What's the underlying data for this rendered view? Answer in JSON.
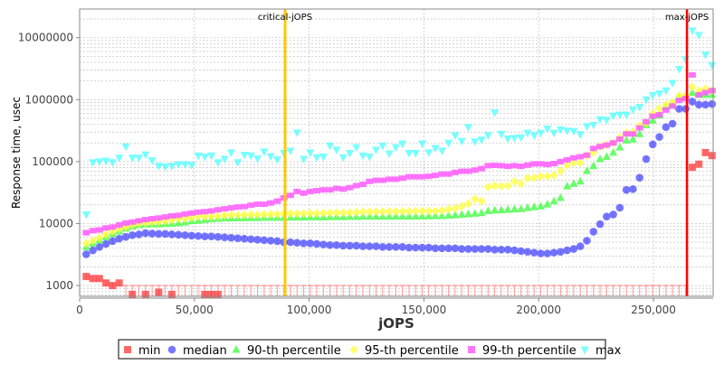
{
  "chart_data": {
    "type": "scatter",
    "title": "",
    "xlabel": "jOPS",
    "ylabel": "Response time, usec",
    "xlim": [
      0,
      276000
    ],
    "ylim": [
      670,
      29000000
    ],
    "yscale": "log",
    "grid": true,
    "legend_placement": "bottom",
    "x_ticks": [
      0,
      50000,
      100000,
      150000,
      200000,
      250000
    ],
    "x_tick_labels": [
      "0",
      "50,000",
      "100,000",
      "150,000",
      "200,000",
      "250,000"
    ],
    "y_ticks": [
      1000,
      10000,
      100000,
      1000000,
      10000000
    ],
    "y_tick_labels": [
      "1000",
      "10000",
      "100000",
      "1000000",
      "10000000"
    ],
    "x_step": 2870,
    "annotations": [
      {
        "label": "critical-jOPS",
        "x": 89500,
        "color": "#ffc800"
      },
      {
        "label": "max-jOPS",
        "x": 264600,
        "color": "#ff0000"
      }
    ],
    "series": [
      {
        "name": "min",
        "marker": "square",
        "color": "#ff4444",
        "values": [
          1400,
          1300,
          1300,
          1100,
          1000,
          1100,
          null,
          720,
          null,
          720,
          null,
          780,
          null,
          720,
          null,
          null,
          null,
          null,
          720,
          720,
          720,
          null,
          null,
          null,
          null,
          null,
          null,
          null,
          null,
          null,
          null,
          null,
          null,
          null,
          null,
          null,
          null,
          null,
          null,
          null,
          null,
          null,
          null,
          null,
          null,
          null,
          null,
          null,
          null,
          null,
          null,
          null,
          null,
          null,
          null,
          null,
          null,
          null,
          null,
          null,
          null,
          null,
          null,
          null,
          null,
          null,
          null,
          null,
          null,
          null,
          null,
          null,
          null,
          null,
          null,
          null,
          null,
          null,
          null,
          null,
          null,
          null,
          null,
          null,
          null,
          null,
          null,
          null,
          null,
          null,
          null,
          null,
          81000,
          91000,
          140000,
          125000
        ]
      },
      {
        "name": "median",
        "marker": "circle",
        "color": "#5555ff",
        "values": [
          3200,
          3700,
          4200,
          4700,
          5200,
          5700,
          6100,
          6500,
          6700,
          7000,
          6900,
          6800,
          6800,
          6700,
          6600,
          6500,
          6400,
          6300,
          6200,
          6200,
          6100,
          6000,
          5900,
          5800,
          5700,
          5600,
          5500,
          5400,
          5300,
          5200,
          5000,
          5000,
          4900,
          4800,
          4800,
          4700,
          4600,
          4500,
          4500,
          4400,
          4400,
          4400,
          4300,
          4300,
          4300,
          4200,
          4200,
          4200,
          4200,
          4100,
          4100,
          4100,
          4100,
          4000,
          4000,
          4000,
          4000,
          3900,
          3900,
          3900,
          3900,
          3900,
          3800,
          3800,
          3800,
          3700,
          3600,
          3500,
          3400,
          3300,
          3300,
          3400,
          3500,
          3700,
          3900,
          4300,
          5300,
          7400,
          9800,
          13000,
          14000,
          18000,
          35000,
          36000,
          55000,
          110000,
          190000,
          250000,
          360000,
          410000,
          710000,
          710000,
          930000,
          830000,
          830000,
          850000
        ]
      },
      {
        "name": "90-th percentile",
        "marker": "triangle-up",
        "color": "#44ff44",
        "values": [
          4200,
          4800,
          5400,
          6100,
          6800,
          7500,
          8300,
          9000,
          9500,
          9700,
          9800,
          9800,
          9900,
          10000,
          10200,
          10500,
          11000,
          11200,
          11500,
          11800,
          12000,
          12200,
          12200,
          12300,
          12300,
          12400,
          12400,
          12500,
          12500,
          12500,
          12500,
          12600,
          12600,
          12600,
          12700,
          12700,
          12700,
          12800,
          12800,
          12800,
          12900,
          12900,
          13000,
          13000,
          13000,
          13000,
          13000,
          13100,
          13100,
          13100,
          13100,
          13200,
          13200,
          13300,
          13300,
          13500,
          13700,
          14000,
          14300,
          14500,
          14800,
          16000,
          16300,
          16500,
          16800,
          17000,
          17200,
          18000,
          18500,
          19000,
          20500,
          23000,
          26000,
          40000,
          44000,
          48000,
          71000,
          85000,
          110000,
          120000,
          140000,
          170000,
          220000,
          230000,
          280000,
          390000,
          460000,
          560000,
          770000,
          830000,
          1100000,
          1120000,
          1300000,
          1200000,
          1200000,
          1200000
        ]
      },
      {
        "name": "95-th percentile",
        "marker": "diamond",
        "color": "#ffff44",
        "values": [
          4800,
          5300,
          5900,
          6700,
          7500,
          8200,
          8800,
          9500,
          10000,
          10300,
          10500,
          10700,
          11000,
          11500,
          12000,
          12000,
          12500,
          13000,
          13000,
          13000,
          13200,
          13500,
          13800,
          13800,
          13900,
          14000,
          14000,
          14100,
          14200,
          14200,
          14500,
          14500,
          14600,
          14600,
          14700,
          14700,
          14800,
          14900,
          15000,
          15000,
          15100,
          15200,
          15500,
          15500,
          15600,
          15600,
          15700,
          15700,
          15800,
          15800,
          15900,
          15900,
          16000,
          16000,
          16200,
          17000,
          17500,
          19000,
          21000,
          25000,
          23000,
          39000,
          41000,
          40000,
          41000,
          48000,
          44000,
          54000,
          55000,
          58000,
          58000,
          60000,
          71000,
          87000,
          96000,
          96000,
          125000,
          140000,
          175000,
          185000,
          200000,
          245000,
          290000,
          300000,
          380000,
          420000,
          600000,
          720000,
          830000,
          910000,
          1160000,
          1160000,
          1600000,
          1400000,
          1500000,
          1400000
        ]
      },
      {
        "name": "99-th percentile",
        "marker": "square-small",
        "color": "#ff55ff",
        "values": [
          7100,
          7700,
          7900,
          8500,
          8800,
          9500,
          10200,
          10600,
          11100,
          11600,
          12000,
          12300,
          12800,
          13300,
          13600,
          14300,
          14800,
          15300,
          15600,
          16000,
          16700,
          17300,
          17900,
          18500,
          18800,
          19800,
          20600,
          20500,
          21500,
          23000,
          26000,
          28500,
          33000,
          31000,
          33000,
          34000,
          35000,
          35000,
          37000,
          36000,
          38000,
          41000,
          43000,
          48000,
          50000,
          50000,
          52000,
          52000,
          54000,
          57000,
          57000,
          57000,
          58000,
          60000,
          63000,
          63000,
          67000,
          70000,
          70000,
          73000,
          77000,
          86000,
          87000,
          86000,
          84000,
          86000,
          84000,
          88000,
          92000,
          92000,
          90000,
          93000,
          100000,
          107000,
          115000,
          120000,
          127000,
          163000,
          175000,
          185000,
          200000,
          230000,
          280000,
          280000,
          350000,
          440000,
          540000,
          570000,
          680000,
          790000,
          970000,
          1040000,
          2500000,
          1200000,
          1300000,
          1400000
        ]
      },
      {
        "name": "max",
        "marker": "triangle-down",
        "color": "#55ffff",
        "values": [
          14000,
          97000,
          100000,
          103000,
          97000,
          115000,
          175000,
          115000,
          115000,
          130000,
          105000,
          85000,
          83000,
          85000,
          90000,
          90000,
          88000,
          125000,
          120000,
          125000,
          97000,
          110000,
          140000,
          97000,
          128000,
          125000,
          112000,
          145000,
          122000,
          108000,
          137000,
          150000,
          293000,
          110000,
          140000,
          117000,
          120000,
          180000,
          155000,
          117000,
          137000,
          170000,
          125000,
          120000,
          155000,
          180000,
          135000,
          170000,
          195000,
          137000,
          137000,
          195000,
          140000,
          165000,
          150000,
          200000,
          265000,
          215000,
          360000,
          210000,
          225000,
          265000,
          620000,
          280000,
          235000,
          240000,
          245000,
          290000,
          265000,
          290000,
          340000,
          290000,
          330000,
          315000,
          310000,
          275000,
          370000,
          390000,
          480000,
          470000,
          550000,
          570000,
          570000,
          690000,
          760000,
          1000000,
          1180000,
          1250000,
          1400000,
          1850000,
          3100000,
          4450000,
          13000000,
          11000000,
          5300000,
          3600000
        ]
      }
    ]
  }
}
